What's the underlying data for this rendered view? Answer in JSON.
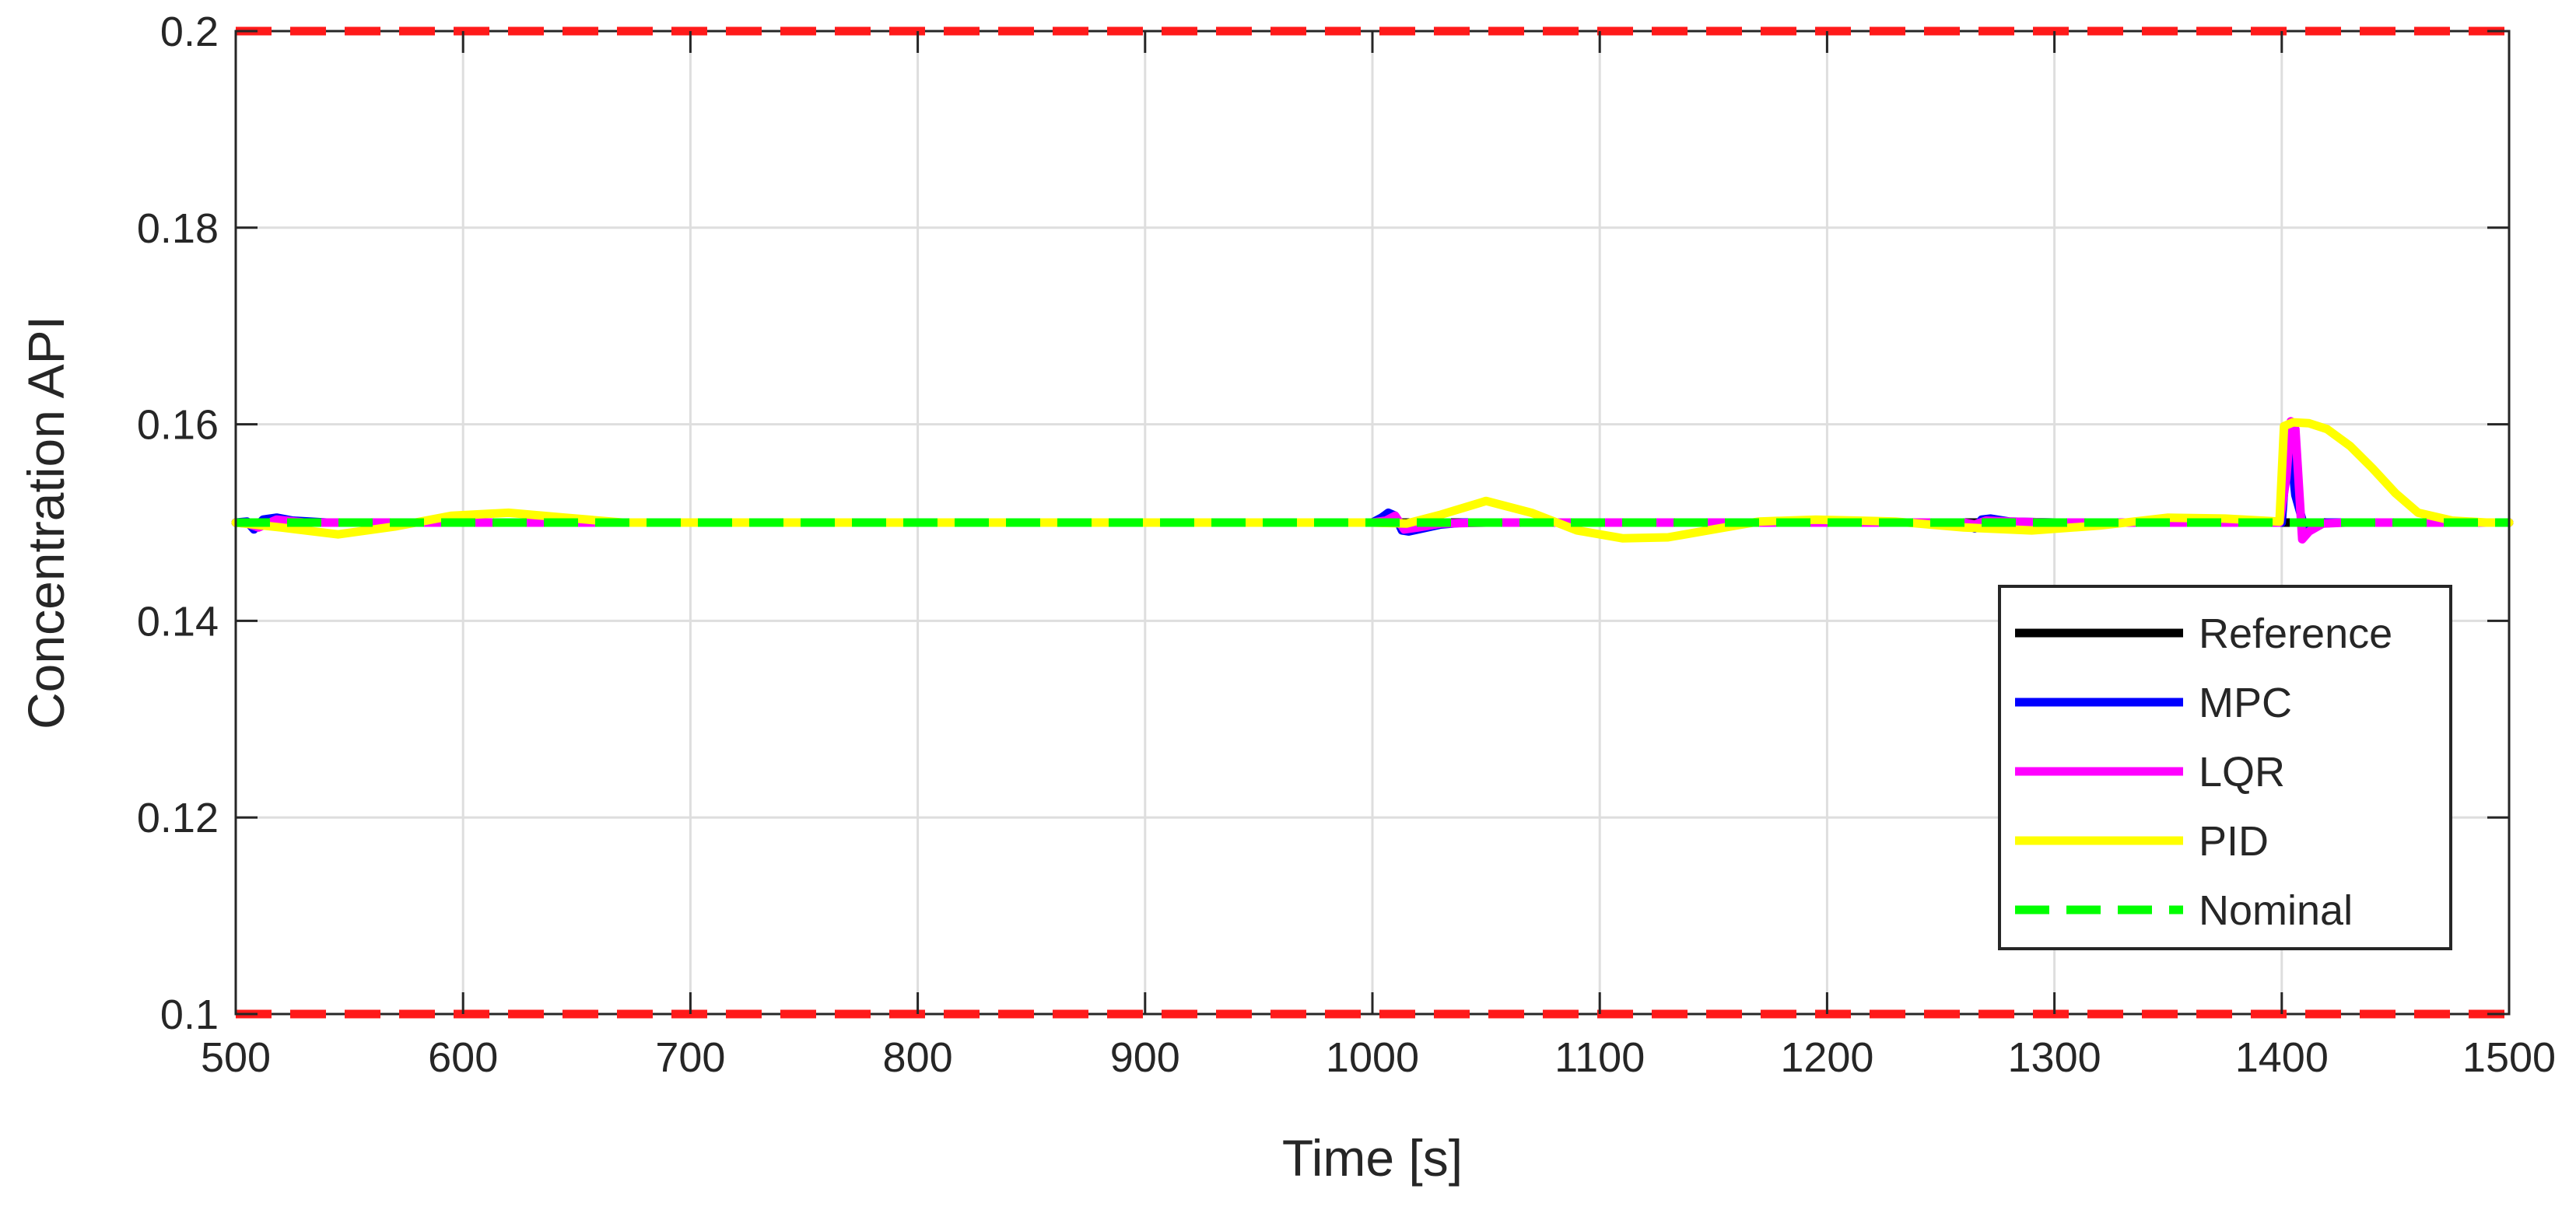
{
  "chart_data": {
    "type": "line",
    "title": "",
    "xlabel": "Time [s]",
    "ylabel": "Concentration API",
    "xlim": [
      500,
      1500
    ],
    "ylim": [
      0.1,
      0.2
    ],
    "xticks": [
      500,
      600,
      700,
      800,
      900,
      1000,
      1100,
      1200,
      1300,
      1400,
      1500
    ],
    "yticks": [
      0.1,
      0.12,
      0.14,
      0.16,
      0.18,
      0.2
    ],
    "xtick_labels": [
      "500",
      "600",
      "700",
      "800",
      "900",
      "1000",
      "1100",
      "1200",
      "1300",
      "1400",
      "1500"
    ],
    "ytick_labels": [
      "0.1",
      "0.12",
      "0.14",
      "0.16",
      "0.18",
      "0.2"
    ],
    "grid": true,
    "legend_position": "bottom-right",
    "bounds": {
      "color": "#ff1a1a",
      "style": "dashed",
      "values": [
        0.1,
        0.2
      ]
    },
    "series": [
      {
        "name": "Reference",
        "color": "#000000",
        "style": "solid",
        "x": [
          500,
          1400,
          1400.5,
          1410,
          1500
        ],
        "y": [
          0.15,
          0.15,
          0.15,
          0.15,
          0.15
        ]
      },
      {
        "name": "MPC",
        "color": "#0000ff",
        "style": "solid",
        "x": [
          500,
          505,
          508,
          512,
          518,
          525,
          540,
          560,
          1000,
          1004,
          1007,
          1010,
          1013,
          1016,
          1022,
          1030,
          1040,
          1260,
          1263,
          1265,
          1268,
          1272,
          1280,
          1300,
          1400,
          1403,
          1406,
          1410,
          1420,
          1500
        ],
        "y": [
          0.15,
          0.1501,
          0.1493,
          0.1503,
          0.1505,
          0.1502,
          0.15,
          0.15,
          0.15,
          0.1505,
          0.151,
          0.1507,
          0.1492,
          0.1491,
          0.1494,
          0.1498,
          0.15,
          0.15,
          0.1496,
          0.1494,
          0.1503,
          0.1504,
          0.1501,
          0.15,
          0.15,
          0.1596,
          0.1528,
          0.1495,
          0.15,
          0.15
        ]
      },
      {
        "name": "LQR",
        "color": "#ff00ff",
        "style": "solid",
        "x": [
          500,
          505,
          510,
          518,
          530,
          560,
          1000,
          1006,
          1010,
          1014,
          1020,
          1030,
          1050,
          1260,
          1265,
          1270,
          1280,
          1300,
          1399,
          1402,
          1404,
          1406,
          1409,
          1412,
          1418,
          1428,
          1500
        ],
        "y": [
          0.15,
          0.1499,
          0.1495,
          0.1503,
          0.15,
          0.15,
          0.15,
          0.1502,
          0.1507,
          0.1493,
          0.1495,
          0.1499,
          0.15,
          0.15,
          0.1498,
          0.1502,
          0.1501,
          0.15,
          0.15,
          0.1545,
          0.1603,
          0.1595,
          0.1483,
          0.1491,
          0.1499,
          0.15,
          0.15
        ]
      },
      {
        "name": "PID",
        "color": "#ffff00",
        "style": "solid",
        "x": [
          500,
          520,
          545,
          570,
          595,
          620,
          645,
          670,
          700,
          1000,
          1015,
          1030,
          1050,
          1070,
          1090,
          1110,
          1130,
          1150,
          1170,
          1195,
          1230,
          1260,
          1290,
          1320,
          1350,
          1375,
          1399,
          1401,
          1405,
          1412,
          1420,
          1430,
          1440,
          1450,
          1460,
          1475,
          1490,
          1500
        ],
        "y": [
          0.15,
          0.1495,
          0.1488,
          0.1496,
          0.1507,
          0.151,
          0.1505,
          0.15,
          0.15,
          0.15,
          0.1499,
          0.1508,
          0.1522,
          0.151,
          0.1492,
          0.1484,
          0.1485,
          0.1493,
          0.1501,
          0.1503,
          0.1501,
          0.1495,
          0.1492,
          0.1497,
          0.1505,
          0.1504,
          0.1501,
          0.1598,
          0.1602,
          0.1601,
          0.1595,
          0.1578,
          0.1555,
          0.153,
          0.151,
          0.1502,
          0.15,
          0.15
        ]
      },
      {
        "name": "Nominal",
        "color": "#00ff00",
        "style": "dashed",
        "x": [
          500,
          1500
        ],
        "y": [
          0.15,
          0.15
        ]
      }
    ]
  }
}
